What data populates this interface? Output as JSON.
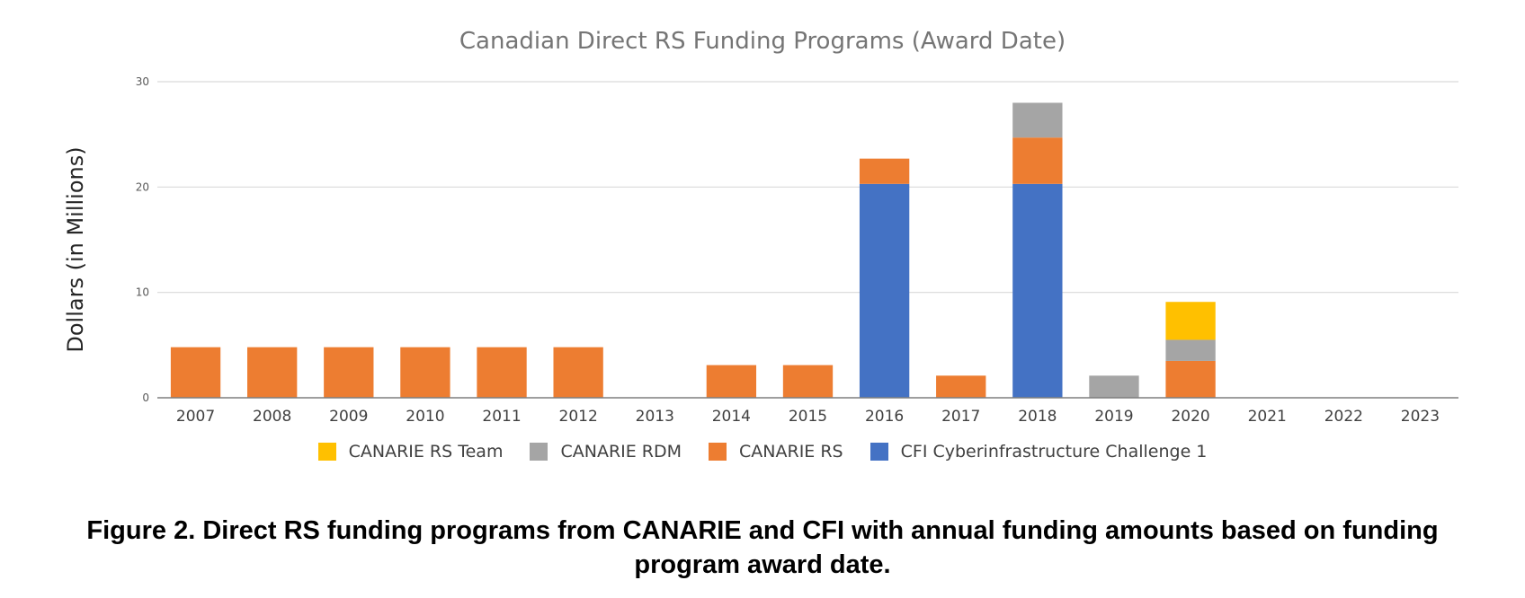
{
  "chart_data": {
    "type": "bar",
    "stacked": true,
    "title": "Canadian Direct RS Funding Programs (Award Date)",
    "ylabel": "Dollars (in Millions)",
    "xlabel": "",
    "ylim": [
      0,
      30
    ],
    "yticks": [
      0,
      10,
      20,
      30
    ],
    "grid": true,
    "legend_position": "bottom",
    "categories": [
      "2007",
      "2008",
      "2009",
      "2010",
      "2011",
      "2012",
      "2013",
      "2014",
      "2015",
      "2016",
      "2017",
      "2018",
      "2019",
      "2020",
      "2021",
      "2022",
      "2023"
    ],
    "series": [
      {
        "name": "CFI Cyberinfrastructure Challenge 1",
        "color": "#4472C4",
        "values": [
          0,
          0,
          0,
          0,
          0,
          0,
          0,
          0,
          0,
          20.3,
          0,
          20.3,
          0,
          0,
          0,
          0,
          0
        ]
      },
      {
        "name": "CANARIE RS",
        "color": "#ED7D31",
        "values": [
          4.8,
          4.8,
          4.8,
          4.8,
          4.8,
          4.8,
          0,
          3.1,
          3.1,
          2.4,
          2.1,
          4.4,
          0,
          3.5,
          0,
          0,
          0
        ]
      },
      {
        "name": "CANARIE RDM",
        "color": "#A5A5A5",
        "values": [
          0,
          0,
          0,
          0,
          0,
          0,
          0,
          0,
          0,
          0,
          0,
          3.3,
          2.1,
          2.0,
          0,
          0,
          0
        ]
      },
      {
        "name": "CANARIE RS Team",
        "color": "#FFC000",
        "values": [
          0,
          0,
          0,
          0,
          0,
          0,
          0,
          0,
          0,
          0,
          0,
          0,
          0,
          3.6,
          0,
          0,
          0
        ]
      }
    ]
  },
  "legend": [
    {
      "label": "CANARIE RS Team",
      "color": "#FFC000"
    },
    {
      "label": "CANARIE RDM",
      "color": "#A5A5A5"
    },
    {
      "label": "CANARIE RS",
      "color": "#ED7D31"
    },
    {
      "label": "CFI Cyberinfrastructure Challenge 1",
      "color": "#4472C4"
    }
  ],
  "caption": {
    "line1": "Figure 2. Direct RS funding programs from CANARIE and CFI with annual funding amounts based on funding",
    "line2": "program award date."
  }
}
